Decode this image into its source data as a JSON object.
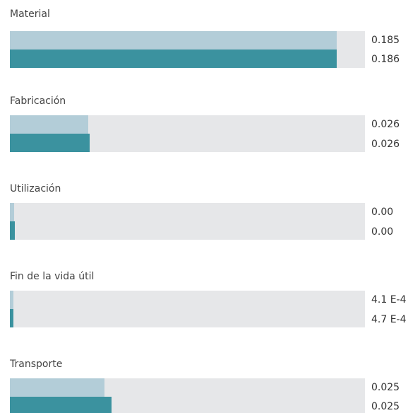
{
  "sections": [
    {
      "label": "Material",
      "values": [
        "0.185",
        "0.186"
      ]
    },
    {
      "label": "Fabricación",
      "values": [
        "0.026",
        "0.026"
      ]
    },
    {
      "label": "Utilización",
      "values": [
        "0.00",
        "0.00"
      ]
    },
    {
      "label": "Fin de la vida útil",
      "values": [
        "4.1 E-4",
        "4.7 E-4"
      ]
    },
    {
      "label": "Transporte",
      "values": [
        "0.025",
        "0.025"
      ]
    }
  ]
}
